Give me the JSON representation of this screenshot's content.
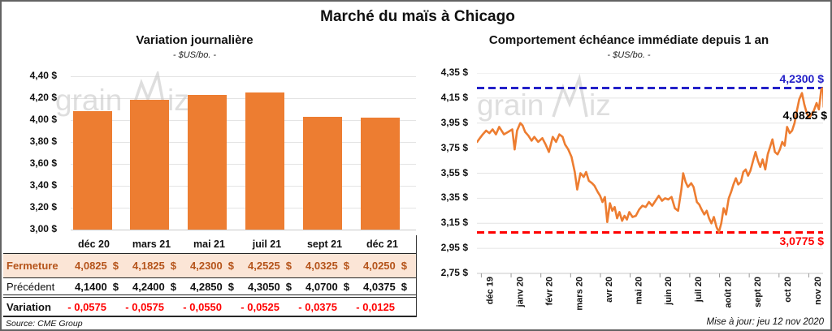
{
  "title": "Marché du maïs à Chicago",
  "source_note": "Source: CME Group",
  "update_note": "Mise à jour: jeu 12 nov 2020",
  "watermark": {
    "part1": "grain",
    "part2": "iz"
  },
  "unit": "$",
  "colors": {
    "series_orange": "#ED7D31",
    "highlight_row_bg": "#FBE5D6",
    "highlight_row_text": "#B5541B",
    "negative_red": "#FF0000",
    "high_line_blue": "#2320C8",
    "low_line_red": "#FF0000",
    "gridline": "#E4E4E4",
    "axis_line": "#C9C9C9",
    "watermark_gray": "#C9C9C9"
  },
  "table": {
    "rows": [
      {
        "label": "Fermeture",
        "values": [
          "4,0825",
          "4,1825",
          "4,2300",
          "4,2525",
          "4,0325",
          "4,0250"
        ],
        "has_unit": true
      },
      {
        "label": "Précédent",
        "values": [
          "4,1400",
          "4,2400",
          "4,2850",
          "4,3050",
          "4,0700",
          "4,0375"
        ],
        "has_unit": true
      },
      {
        "label": "Variation",
        "values": [
          "- 0,0575",
          "- 0,0575",
          "- 0,0550",
          "- 0,0525",
          "- 0,0375",
          "- 0,0125"
        ],
        "has_unit": false
      }
    ]
  },
  "chart_data": [
    {
      "type": "bar",
      "title": "Variation journalière",
      "subtitle": "- $US/bo. -",
      "categories": [
        "déc 20",
        "mars 21",
        "mai 21",
        "juil 21",
        "sept 21",
        "déc 21"
      ],
      "values": [
        4.0825,
        4.1825,
        4.23,
        4.2525,
        4.0325,
        4.025
      ],
      "ylim": [
        3.0,
        4.4
      ],
      "y_tick_step": 0.2,
      "y_tick_labels": [
        "4,40 $",
        "4,20 $",
        "4,00 $",
        "3,80 $",
        "3,60 $",
        "3,40 $",
        "3,20 $",
        "3,00 $"
      ],
      "grid": true,
      "legend": "none"
    },
    {
      "type": "line",
      "title": "Comportement échéance immédiate depuis 1 an",
      "subtitle": "- $US/bo. -",
      "x_labels": [
        "déc 19",
        "janv 20",
        "févr 20",
        "mars 20",
        "avr 20",
        "mai 20",
        "juin 20",
        "juil 20",
        "août 20",
        "sept 20",
        "oct 20",
        "nov 20"
      ],
      "ylim": [
        2.75,
        4.35
      ],
      "y_tick_step": 0.2,
      "y_tick_labels": [
        "4,35 $",
        "4,15 $",
        "3,95 $",
        "3,75 $",
        "3,55 $",
        "3,35 $",
        "3,15 $",
        "2,95 $",
        "2,75 $"
      ],
      "grid": true,
      "legend": "none",
      "annotations": {
        "high": {
          "value": 4.23,
          "label": "4,2300 $"
        },
        "low": {
          "value": 3.0775,
          "label": "3,0775 $"
        },
        "last": {
          "value": 4.0825,
          "label": "4,0825 $"
        }
      },
      "series": [
        {
          "name": "échéance immédiate",
          "x_unit": "months_since_dec_2019",
          "points": [
            [
              -0.14,
              3.8
            ],
            [
              -0.05,
              3.83
            ],
            [
              0.05,
              3.86
            ],
            [
              0.16,
              3.89
            ],
            [
              0.27,
              3.87
            ],
            [
              0.38,
              3.9
            ],
            [
              0.49,
              3.86
            ],
            [
              0.6,
              3.92
            ],
            [
              0.76,
              3.86
            ],
            [
              0.9,
              3.88
            ],
            [
              1.04,
              3.9
            ],
            [
              1.12,
              3.74
            ],
            [
              1.2,
              3.89
            ],
            [
              1.31,
              3.95
            ],
            [
              1.39,
              3.93
            ],
            [
              1.47,
              3.88
            ],
            [
              1.58,
              3.85
            ],
            [
              1.69,
              3.81
            ],
            [
              1.78,
              3.84
            ],
            [
              1.91,
              3.8
            ],
            [
              2.05,
              3.83
            ],
            [
              2.16,
              3.78
            ],
            [
              2.27,
              3.72
            ],
            [
              2.4,
              3.84
            ],
            [
              2.51,
              3.8
            ],
            [
              2.62,
              3.86
            ],
            [
              2.73,
              3.84
            ],
            [
              2.81,
              3.78
            ],
            [
              2.92,
              3.74
            ],
            [
              3.03,
              3.68
            ],
            [
              3.14,
              3.56
            ],
            [
              3.22,
              3.42
            ],
            [
              3.33,
              3.55
            ],
            [
              3.44,
              3.52
            ],
            [
              3.52,
              3.56
            ],
            [
              3.61,
              3.49
            ],
            [
              3.72,
              3.47
            ],
            [
              3.8,
              3.45
            ],
            [
              3.91,
              3.4
            ],
            [
              3.99,
              3.37
            ],
            [
              4.07,
              3.32
            ],
            [
              4.15,
              3.36
            ],
            [
              4.23,
              3.16
            ],
            [
              4.32,
              3.31
            ],
            [
              4.4,
              3.25
            ],
            [
              4.48,
              3.28
            ],
            [
              4.56,
              3.19
            ],
            [
              4.64,
              3.24
            ],
            [
              4.73,
              3.17
            ],
            [
              4.81,
              3.21
            ],
            [
              4.89,
              3.18
            ],
            [
              4.97,
              3.24
            ],
            [
              5.08,
              3.2
            ],
            [
              5.19,
              3.21
            ],
            [
              5.3,
              3.26
            ],
            [
              5.41,
              3.29
            ],
            [
              5.52,
              3.28
            ],
            [
              5.63,
              3.32
            ],
            [
              5.74,
              3.29
            ],
            [
              5.85,
              3.33
            ],
            [
              5.96,
              3.37
            ],
            [
              6.07,
              3.33
            ],
            [
              6.17,
              3.35
            ],
            [
              6.28,
              3.34
            ],
            [
              6.39,
              3.36
            ],
            [
              6.5,
              3.27
            ],
            [
              6.61,
              3.25
            ],
            [
              6.72,
              3.42
            ],
            [
              6.78,
              3.55
            ],
            [
              6.86,
              3.48
            ],
            [
              6.94,
              3.44
            ],
            [
              7.05,
              3.47
            ],
            [
              7.13,
              3.44
            ],
            [
              7.24,
              3.32
            ],
            [
              7.32,
              3.3
            ],
            [
              7.4,
              3.26
            ],
            [
              7.49,
              3.22
            ],
            [
              7.57,
              3.25
            ],
            [
              7.65,
              3.19
            ],
            [
              7.73,
              3.15
            ],
            [
              7.81,
              3.2
            ],
            [
              7.9,
              3.12
            ],
            [
              7.98,
              3.08
            ],
            [
              8.06,
              3.15
            ],
            [
              8.14,
              3.27
            ],
            [
              8.22,
              3.22
            ],
            [
              8.31,
              3.35
            ],
            [
              8.39,
              3.4
            ],
            [
              8.47,
              3.46
            ],
            [
              8.55,
              3.51
            ],
            [
              8.63,
              3.46
            ],
            [
              8.72,
              3.48
            ],
            [
              8.8,
              3.56
            ],
            [
              8.88,
              3.58
            ],
            [
              8.96,
              3.53
            ],
            [
              9.04,
              3.57
            ],
            [
              9.13,
              3.65
            ],
            [
              9.21,
              3.72
            ],
            [
              9.29,
              3.65
            ],
            [
              9.37,
              3.6
            ],
            [
              9.45,
              3.66
            ],
            [
              9.54,
              3.58
            ],
            [
              9.62,
              3.7
            ],
            [
              9.7,
              3.76
            ],
            [
              9.78,
              3.82
            ],
            [
              9.86,
              3.72
            ],
            [
              9.95,
              3.7
            ],
            [
              10.03,
              3.74
            ],
            [
              10.11,
              3.8
            ],
            [
              10.19,
              3.77
            ],
            [
              10.27,
              3.92
            ],
            [
              10.36,
              3.87
            ],
            [
              10.44,
              3.89
            ],
            [
              10.52,
              3.95
            ],
            [
              10.6,
              4.05
            ],
            [
              10.68,
              4.14
            ],
            [
              10.77,
              4.19
            ],
            [
              10.85,
              4.1
            ],
            [
              10.93,
              4.03
            ],
            [
              11.01,
              3.99
            ],
            [
              11.09,
              4.02
            ],
            [
              11.17,
              4.05
            ],
            [
              11.26,
              4.11
            ],
            [
              11.34,
              4.06
            ],
            [
              11.42,
              4.22
            ],
            [
              11.48,
              4.23
            ],
            [
              11.5,
              4.08
            ]
          ]
        }
      ]
    }
  ]
}
